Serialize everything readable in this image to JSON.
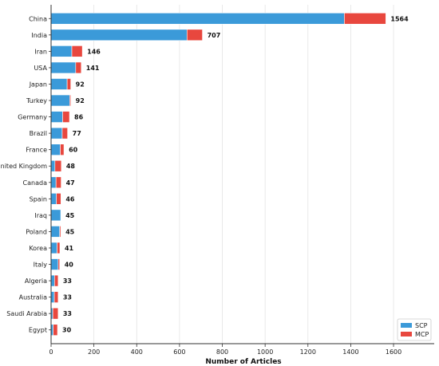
{
  "chart_data": {
    "type": "bar",
    "orientation": "horizontal",
    "stacked": true,
    "categories": [
      "China",
      "India",
      "Iran",
      "USA",
      "Japan",
      "Turkey",
      "Germany",
      "Brazil",
      "France",
      "United Kingdom",
      "Canada",
      "Spain",
      "Iraq",
      "Poland",
      "Korea",
      "Italy",
      "Algeria",
      "Australia",
      "Saudi Arabia",
      "Egypt"
    ],
    "series": [
      {
        "name": "SCP",
        "color": "#3b9ad9",
        "values": [
          1370,
          635,
          97,
          115,
          75,
          87,
          54,
          52,
          43,
          18,
          23,
          25,
          45,
          40,
          28,
          33,
          16,
          15,
          8,
          10
        ]
      },
      {
        "name": "MCP",
        "color": "#e8473e",
        "values": [
          194,
          72,
          49,
          26,
          17,
          5,
          32,
          25,
          17,
          30,
          24,
          21,
          0,
          5,
          13,
          7,
          17,
          18,
          25,
          20
        ]
      }
    ],
    "totals": [
      1564,
      707,
      146,
      141,
      92,
      92,
      86,
      77,
      60,
      48,
      47,
      46,
      45,
      45,
      41,
      40,
      33,
      33,
      33,
      30
    ],
    "xlabel": "Number of Articles",
    "ylabel": "",
    "xlim": [
      0,
      1790
    ],
    "xticks": [
      0,
      200,
      400,
      600,
      800,
      1000,
      1200,
      1400,
      1600
    ],
    "grid": "vertical",
    "legend": "bottom-right"
  }
}
